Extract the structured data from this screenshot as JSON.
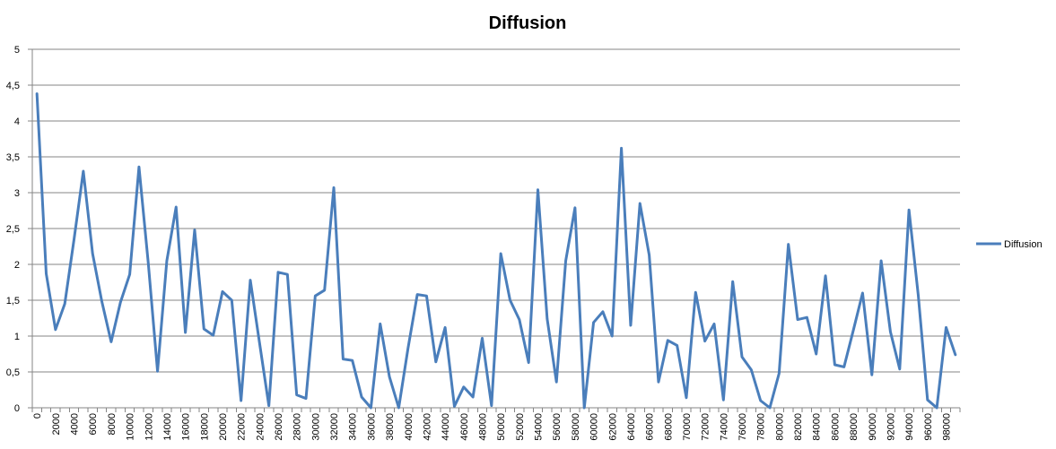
{
  "colors": {
    "series": "#4a7ebb",
    "grid": "#868686",
    "axis": "#868686",
    "background": "#ffffff"
  },
  "chart_data": {
    "type": "line",
    "title": "Diffusion",
    "xlabel": "",
    "ylabel": "",
    "ylim": [
      0,
      5
    ],
    "y_ticks": [
      "0",
      "0,5",
      "1",
      "1,5",
      "2",
      "2,5",
      "3",
      "3,5",
      "4",
      "4,5",
      "5"
    ],
    "x_ticks": [
      "0",
      "2000",
      "4000",
      "6000",
      "8000",
      "10000",
      "12000",
      "14000",
      "16000",
      "18000",
      "20000",
      "22000",
      "24000",
      "26000",
      "28000",
      "30000",
      "32000",
      "34000",
      "36000",
      "38000",
      "40000",
      "42000",
      "44000",
      "46000",
      "48000",
      "50000",
      "52000",
      "54000",
      "56000",
      "58000",
      "60000",
      "62000",
      "64000",
      "66000",
      "68000",
      "70000",
      "72000",
      "74000",
      "76000",
      "78000",
      "80000",
      "82000",
      "84000",
      "86000",
      "88000",
      "90000",
      "92000",
      "94000",
      "96000",
      "98000"
    ],
    "grid": "horizontal",
    "legend_position": "right",
    "series": [
      {
        "name": "Diffusion",
        "x_step": 1000,
        "values": [
          4.38,
          1.87,
          1.09,
          1.45,
          2.35,
          3.3,
          2.15,
          1.48,
          0.92,
          1.47,
          1.86,
          3.36,
          2.02,
          0.51,
          2.05,
          2.8,
          1.05,
          2.48,
          1.1,
          1.01,
          1.62,
          1.5,
          0.1,
          1.78,
          0.9,
          0.03,
          1.89,
          1.86,
          0.18,
          0.13,
          1.56,
          1.64,
          3.07,
          0.68,
          0.66,
          0.15,
          0.0,
          1.17,
          0.43,
          0.0,
          0.83,
          1.58,
          1.56,
          0.64,
          1.12,
          0.02,
          0.29,
          0.15,
          0.97,
          0.03,
          2.15,
          1.5,
          1.23,
          0.63,
          3.04,
          1.24,
          0.36,
          2.05,
          2.79,
          0.0,
          1.19,
          1.34,
          1.0,
          3.62,
          1.15,
          2.85,
          2.13,
          0.36,
          0.94,
          0.87,
          0.14,
          1.61,
          0.93,
          1.17,
          0.11,
          1.76,
          0.71,
          0.53,
          0.1,
          0.0,
          0.48,
          2.28,
          1.23,
          1.26,
          0.75,
          1.84,
          0.6,
          0.57,
          1.08,
          1.6,
          0.46,
          2.05,
          1.06,
          0.54,
          2.76,
          1.57,
          0.11,
          0.0,
          1.12,
          0.74
        ]
      }
    ]
  }
}
